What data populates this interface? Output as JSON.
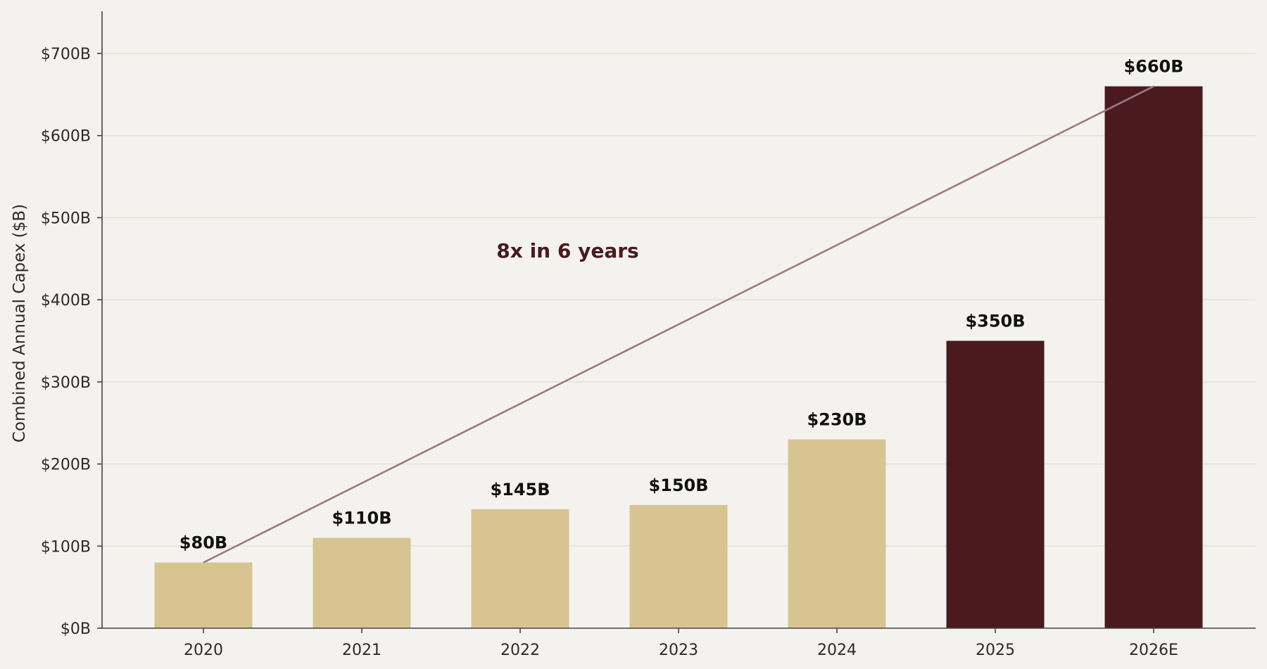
{
  "chart_data": {
    "type": "bar",
    "categories": [
      "2020",
      "2021",
      "2022",
      "2023",
      "2024",
      "2025",
      "2026E"
    ],
    "values": [
      80,
      110,
      145,
      150,
      230,
      350,
      660
    ],
    "value_labels": [
      "$80B",
      "$110B",
      "$145B",
      "$150B",
      "$230B",
      "$350B",
      "$660B"
    ],
    "highlighted": [
      false,
      false,
      false,
      false,
      false,
      true,
      true
    ],
    "ylabel": "Combined Annual Capex ($B)",
    "xlabel": "",
    "ylim": [
      0,
      750
    ],
    "yticks": [
      0,
      100,
      200,
      300,
      400,
      500,
      600,
      700
    ],
    "ytick_labels": [
      "$0B",
      "$100B",
      "$200B",
      "$300B",
      "$400B",
      "$500B",
      "$600B",
      "$700B"
    ],
    "grid": true,
    "trend_line": {
      "from_category": "2020",
      "from_value": 80,
      "to_category": "2026E",
      "to_value": 660
    },
    "annotation": {
      "text": "8x in 6 years",
      "at_category_position": 2.3,
      "at_value": 460
    },
    "colors": {
      "base_bar": "#d8c491",
      "highlight_bar": "#4a1a1e",
      "trend_line": "#9b7b7d",
      "annotation_text": "#4a1a1e"
    }
  }
}
